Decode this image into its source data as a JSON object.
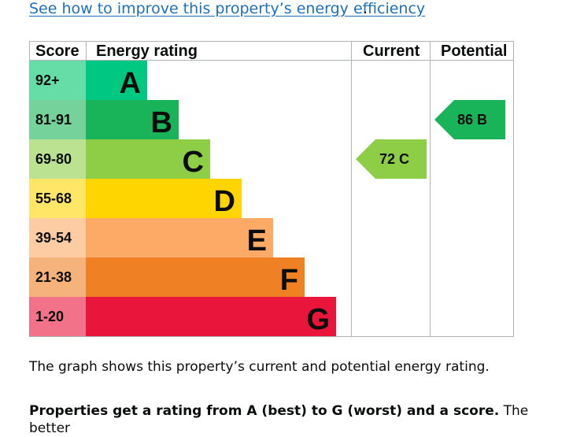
{
  "link": {
    "text": "See how to improve this property’s energy efficiency",
    "trailing": "."
  },
  "headers": {
    "score": "Score",
    "rating": "Energy rating",
    "current": "Current",
    "potential": "Potential"
  },
  "bands": [
    {
      "score": "92+",
      "letter": "A",
      "color": "#00c781",
      "score_bg": "#66dda7"
    },
    {
      "score": "81-91",
      "letter": "B",
      "color": "#19b459",
      "score_bg": "#75d29b"
    },
    {
      "score": "69-80",
      "letter": "C",
      "color": "#8dce46",
      "score_bg": "#bbe290"
    },
    {
      "score": "55-68",
      "letter": "D",
      "color": "#ffd500",
      "score_bg": "#ffe666"
    },
    {
      "score": "39-54",
      "letter": "E",
      "color": "#fcaa65",
      "score_bg": "#fdcca3"
    },
    {
      "score": "21-38",
      "letter": "F",
      "color": "#ef8023",
      "score_bg": "#f5b37b"
    },
    {
      "score": "1-20",
      "letter": "G",
      "color": "#e9153b",
      "score_bg": "#f27389"
    }
  ],
  "current": {
    "label": "72 C",
    "score": 72,
    "band": "C",
    "color": "#8dce46"
  },
  "potential": {
    "label": "86 B",
    "score": 86,
    "band": "B",
    "color": "#19b459"
  },
  "paragraph1": "The graph shows this property’s current and potential energy rating.",
  "paragraph2": {
    "bold": "Properties get a rating from A (best) to G (worst) and a score.",
    "rest": " The better"
  }
}
